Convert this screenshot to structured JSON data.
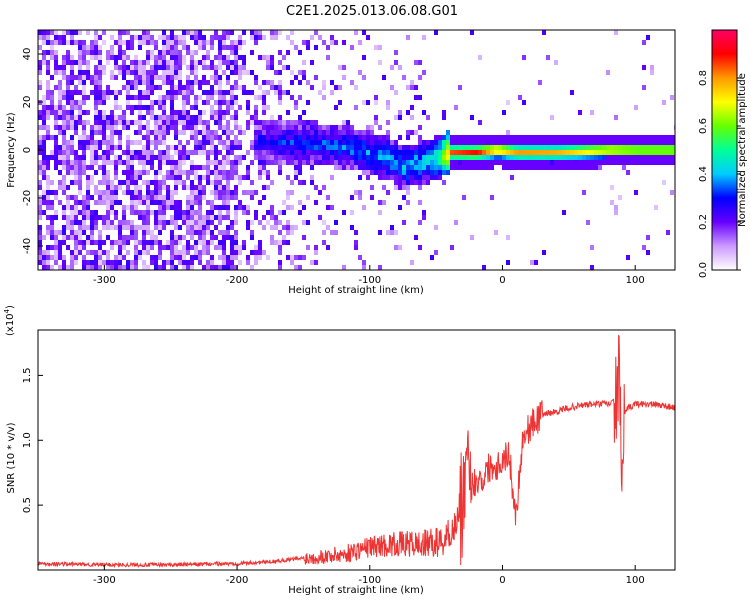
{
  "title": "C2E1.2025.013.06.08.G01",
  "chart_data": [
    {
      "type": "heatmap",
      "xlabel": "Height of straight line (km)",
      "ylabel": "Frequency (Hz)",
      "xlim": [
        -350,
        130
      ],
      "ylim": [
        -50,
        50
      ],
      "xticks": [
        -300,
        -200,
        -100,
        0,
        100
      ],
      "yticks": [
        -40,
        -20,
        0,
        20,
        40
      ],
      "colorbar": {
        "label": "Normalized spectral amplitude",
        "range": [
          0,
          1
        ],
        "ticks": [
          0.0,
          0.2,
          0.4,
          0.6,
          0.8
        ],
        "colors": [
          "#ffffff",
          "#cc99ff",
          "#6600ff",
          "#0000ff",
          "#00ccff",
          "#00ff99",
          "#66ff00",
          "#ffff00",
          "#ff9900",
          "#ff0000",
          "#ff0066"
        ]
      },
      "ridge": [
        {
          "x": -190,
          "y": 5,
          "amp": 0.25
        },
        {
          "x": -170,
          "y": 4,
          "amp": 0.3
        },
        {
          "x": -150,
          "y": 4,
          "amp": 0.32
        },
        {
          "x": -130,
          "y": 3,
          "amp": 0.35
        },
        {
          "x": -110,
          "y": 1,
          "amp": 0.35
        },
        {
          "x": -90,
          "y": -2,
          "amp": 0.38
        },
        {
          "x": -75,
          "y": -6,
          "amp": 0.4
        },
        {
          "x": -60,
          "y": -4,
          "amp": 0.42
        },
        {
          "x": -50,
          "y": -2,
          "amp": 0.5
        },
        {
          "x": -40,
          "y": 0,
          "amp": 0.85
        },
        {
          "x": -20,
          "y": 0,
          "amp": 0.9
        },
        {
          "x": -5,
          "y": 1,
          "amp": 0.85
        },
        {
          "x": 10,
          "y": 0,
          "amp": 0.8
        },
        {
          "x": 40,
          "y": 0,
          "amp": 0.78
        },
        {
          "x": 80,
          "y": 1,
          "amp": 0.8
        },
        {
          "x": 100,
          "y": 1,
          "amp": 0.75
        },
        {
          "x": 130,
          "y": 1,
          "amp": 0.75
        }
      ]
    },
    {
      "type": "line",
      "xlabel": "Height of straight line (km)",
      "ylabel": "SNR (10 * v/v)",
      "yscale_note": "(x10",
      "yscale_exp": "4",
      "xlim": [
        -350,
        130
      ],
      "ylim": [
        0,
        1.85
      ],
      "xticks": [
        -300,
        -200,
        -100,
        0,
        100
      ],
      "yticks": [
        0.5,
        1.0,
        1.5
      ],
      "ytick_labels": [
        "0.5",
        "1.0",
        "1.5"
      ],
      "series_color": "#ee3333",
      "series": [
        {
          "x": [
            -350,
            -300,
            -250,
            -200,
            -180,
            -150,
            -120,
            -100,
            -80,
            -60,
            -45,
            -35,
            -30,
            -25,
            -20,
            -15,
            -10,
            -5,
            0,
            5,
            10,
            15,
            20,
            30,
            40,
            50,
            60,
            70,
            80,
            85,
            88,
            90,
            92,
            95,
            100,
            110,
            120,
            130
          ],
          "y": [
            0.05,
            0.04,
            0.04,
            0.05,
            0.06,
            0.09,
            0.12,
            0.18,
            0.2,
            0.2,
            0.22,
            0.35,
            0.6,
            0.6,
            0.7,
            0.7,
            0.8,
            0.8,
            0.85,
            0.9,
            0.4,
            1.0,
            1.1,
            1.2,
            1.22,
            1.25,
            1.27,
            1.28,
            1.28,
            1.3,
            1.5,
            0.7,
            1.2,
            1.25,
            1.28,
            1.28,
            1.27,
            1.25
          ]
        }
      ]
    }
  ]
}
